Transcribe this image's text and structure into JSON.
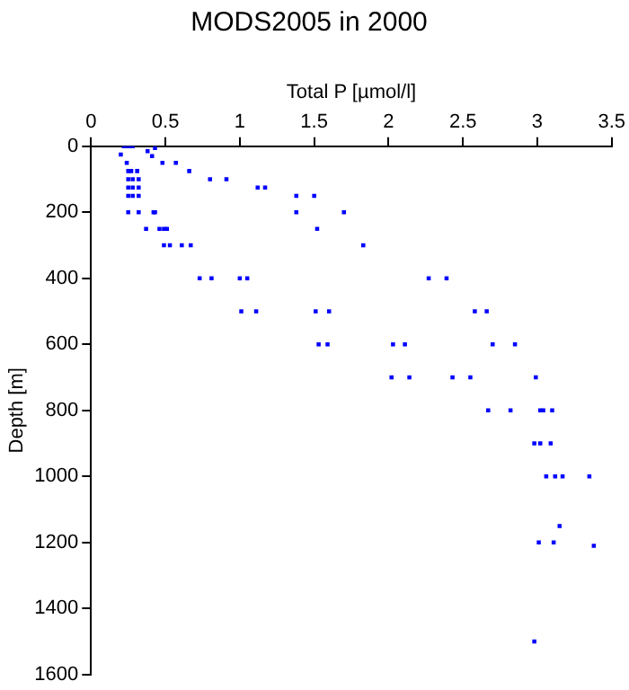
{
  "chart_data": {
    "type": "scatter",
    "title": "MODS2005 in 2000",
    "xlabel": "Total P [µmol/l]",
    "ylabel": "Depth [m]",
    "xlim": [
      0,
      3.5
    ],
    "xticks": [
      0,
      0.5,
      1,
      1.5,
      2,
      2.5,
      3,
      3.5
    ],
    "ylim": [
      1600,
      0
    ],
    "yticks": [
      0,
      200,
      400,
      600,
      800,
      1000,
      1200,
      1400,
      1600
    ],
    "grid": false,
    "legend": false,
    "marker": "square",
    "series": [
      {
        "color": "#0000ff",
        "x": [
          0.22,
          0.24,
          0.26,
          0.28,
          0.2,
          0.38,
          0.43,
          0.41,
          0.24,
          0.48,
          0.57,
          0.25,
          0.27,
          0.31,
          0.66,
          0.25,
          0.28,
          0.32,
          0.8,
          0.91,
          0.25,
          0.28,
          0.32,
          1.12,
          1.17,
          0.25,
          0.28,
          0.32,
          1.38,
          1.5,
          0.25,
          0.32,
          0.42,
          0.43,
          1.38,
          1.7,
          0.37,
          0.46,
          0.49,
          0.51,
          1.52,
          0.49,
          0.53,
          0.61,
          0.67,
          1.83,
          0.73,
          0.81,
          1.0,
          1.05,
          2.27,
          2.39,
          1.01,
          1.11,
          1.51,
          1.6,
          2.58,
          2.66,
          1.53,
          1.59,
          2.03,
          2.11,
          2.7,
          2.85,
          2.02,
          2.14,
          2.43,
          2.55,
          2.99,
          2.67,
          2.82,
          3.02,
          3.04,
          3.1,
          2.98,
          3.02,
          3.09,
          3.06,
          3.12,
          3.17,
          3.35,
          3.15,
          3.01,
          3.11,
          3.38,
          2.98
        ],
        "values": [
          0,
          0,
          0,
          0,
          25,
          15,
          5,
          30,
          50,
          50,
          50,
          75,
          75,
          75,
          75,
          100,
          100,
          100,
          100,
          100,
          125,
          125,
          125,
          125,
          125,
          150,
          150,
          150,
          150,
          150,
          200,
          200,
          200,
          200,
          200,
          200,
          250,
          250,
          250,
          250,
          250,
          300,
          300,
          300,
          300,
          300,
          400,
          400,
          400,
          400,
          400,
          400,
          500,
          500,
          500,
          500,
          500,
          500,
          600,
          600,
          600,
          600,
          600,
          600,
          700,
          700,
          700,
          700,
          700,
          800,
          800,
          800,
          800,
          800,
          900,
          900,
          900,
          1000,
          1000,
          1000,
          1000,
          1150,
          1200,
          1200,
          1210,
          1500
        ]
      }
    ]
  }
}
